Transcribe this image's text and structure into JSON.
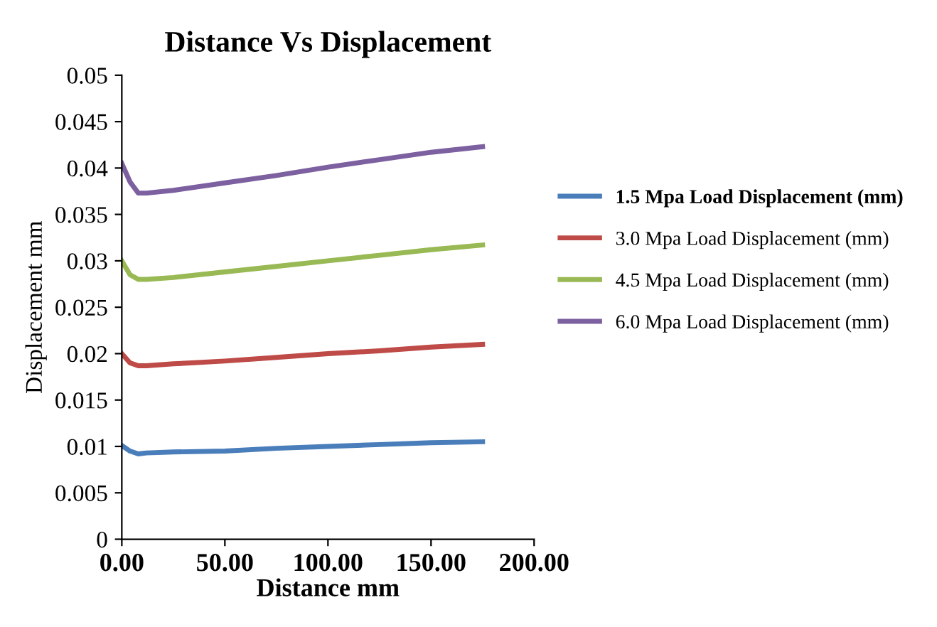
{
  "chart_data": {
    "type": "line",
    "title": "Distance Vs Displacement",
    "xlabel": "Distance mm",
    "ylabel": "Displacement mm",
    "x": [
      0,
      4,
      8,
      12,
      25,
      50,
      75,
      100,
      125,
      150,
      175
    ],
    "series": [
      {
        "name": "1.5 Mpa Load Displacement (mm)",
        "color": "#4a7ebb",
        "values": [
          0.0101,
          0.0095,
          0.0092,
          0.0093,
          0.0094,
          0.0095,
          0.0098,
          0.01,
          0.0102,
          0.0104,
          0.0105
        ]
      },
      {
        "name": "3.0 Mpa Load Displacement (mm)",
        "color": "#be4b48",
        "values": [
          0.02,
          0.019,
          0.0187,
          0.0187,
          0.0189,
          0.0192,
          0.0196,
          0.02,
          0.0203,
          0.0207,
          0.021
        ]
      },
      {
        "name": "4.5 Mpa Load Displacement (mm)",
        "color": "#98b954",
        "values": [
          0.03,
          0.0285,
          0.028,
          0.028,
          0.0282,
          0.0288,
          0.0294,
          0.03,
          0.0306,
          0.0312,
          0.0317
        ]
      },
      {
        "name": "6.0 Mpa Load Displacement (mm)",
        "color": "#7d60a0",
        "values": [
          0.0405,
          0.0385,
          0.0373,
          0.0373,
          0.0376,
          0.0384,
          0.0392,
          0.0401,
          0.0409,
          0.0417,
          0.0423
        ]
      }
    ],
    "xlim": [
      0,
      200
    ],
    "xticks": [
      {
        "value": 0,
        "label": "0.00"
      },
      {
        "value": 50,
        "label": "50.00"
      },
      {
        "value": 100,
        "label": "100.00"
      },
      {
        "value": 150,
        "label": "150.00"
      },
      {
        "value": 200,
        "label": "200.00"
      }
    ],
    "ylim": [
      0,
      0.05
    ],
    "yticks": [
      0,
      0.005,
      0.01,
      0.015,
      0.02,
      0.025,
      0.03,
      0.035,
      0.04,
      0.045,
      0.05
    ],
    "grid": false,
    "legend": "right",
    "marker": "none",
    "line_style": "solid"
  }
}
